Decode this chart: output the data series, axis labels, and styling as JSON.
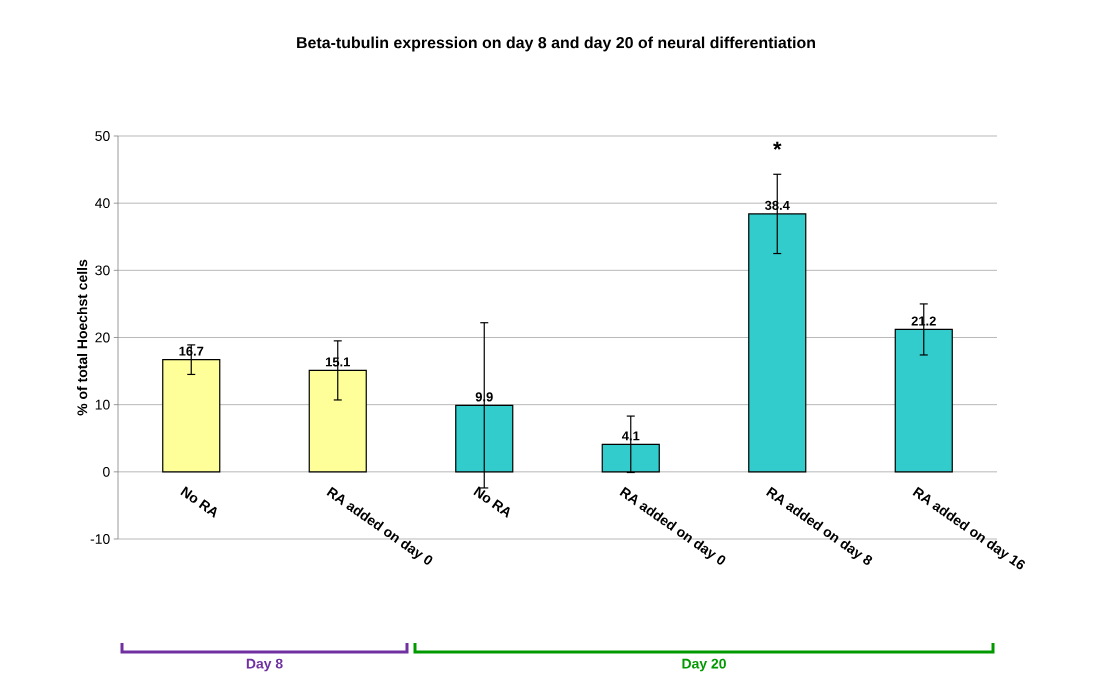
{
  "chart_data": {
    "type": "bar",
    "title": "Beta-tubulin expression on day 8 and day 20 of neural differentiation",
    "ylabel": "% of total Hoechst cells",
    "categories": [
      "No RA",
      "RA added on day 0",
      "No RA",
      "RA added on day 0",
      "RA added on day 8",
      "RA added on day 16"
    ],
    "values": [
      16.7,
      15.1,
      9.9,
      4.1,
      38.4,
      21.2
    ],
    "colors": [
      "#ffff99",
      "#ffff99",
      "#33cccc",
      "#33cccc",
      "#33cccc",
      "#33cccc"
    ],
    "errors": [
      2.2,
      4.4,
      12.3,
      4.2,
      5.9,
      3.8
    ],
    "ylim": [
      -10,
      50
    ],
    "yticks": [
      -10,
      0,
      10,
      20,
      30,
      40,
      50
    ],
    "grid": "y",
    "data_labels": true,
    "annotations": [
      "*",
      "Day 8",
      "Day 20"
    ]
  }
}
